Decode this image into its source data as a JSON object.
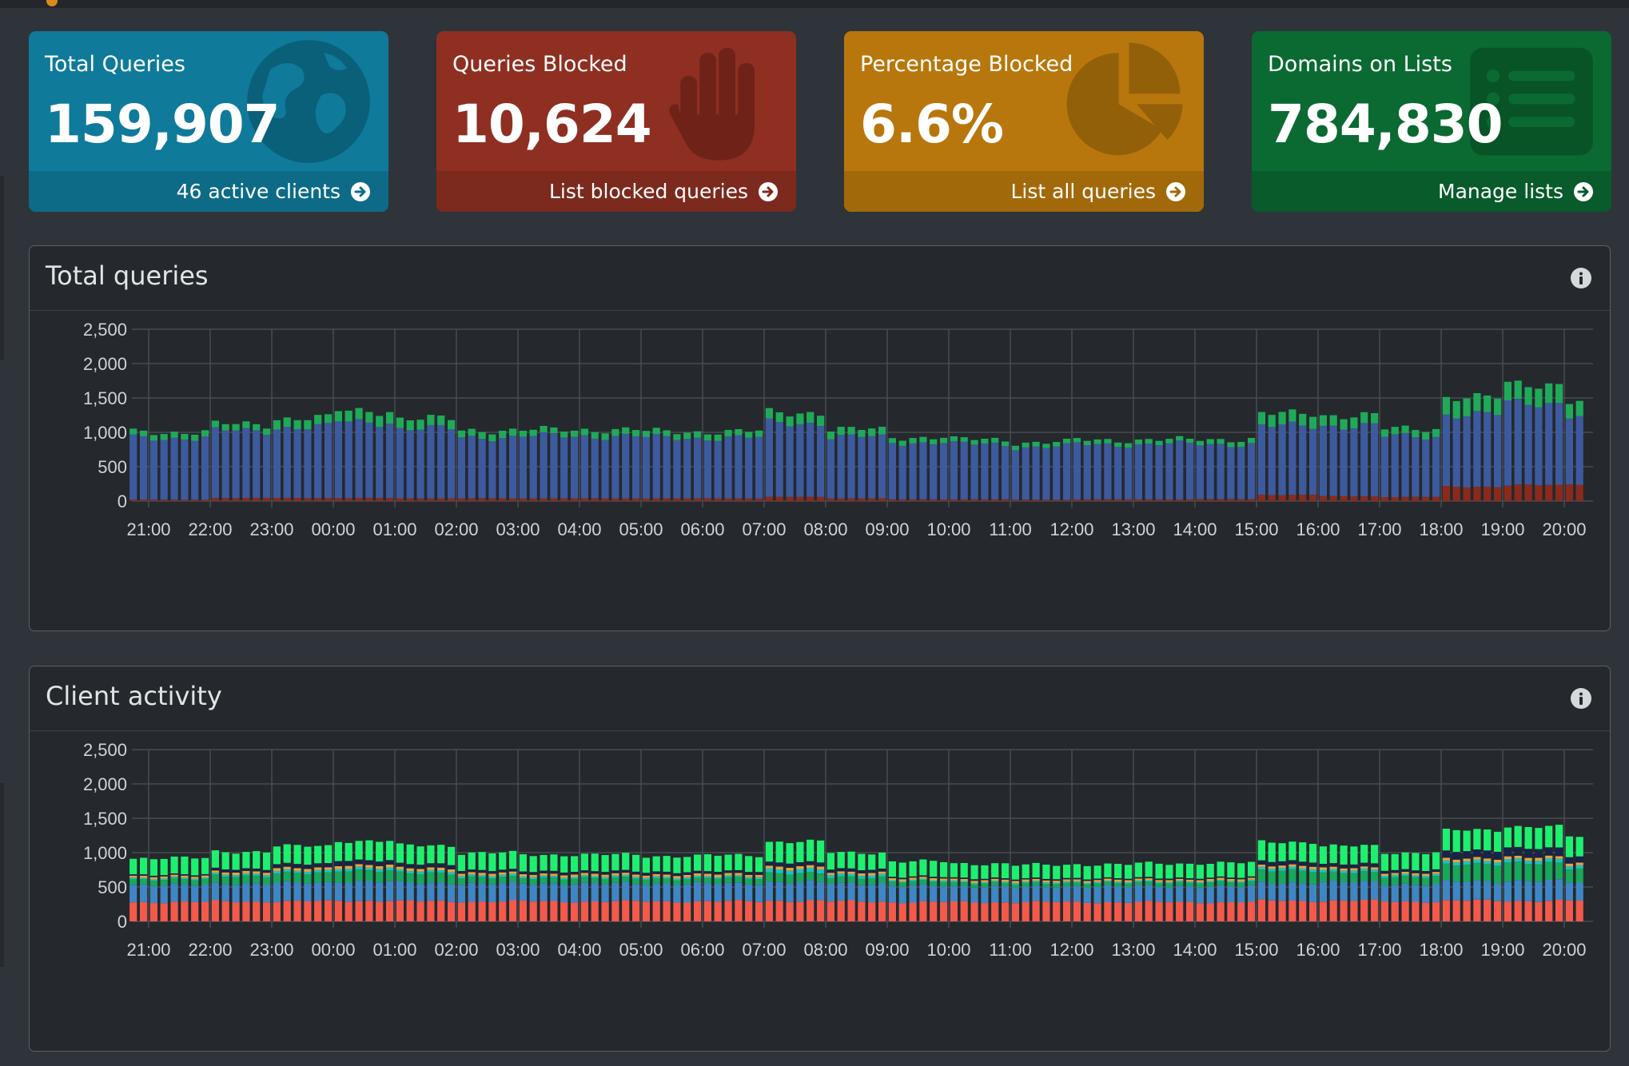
{
  "cards": [
    {
      "label": "Total Queries",
      "value": "159,907",
      "link": "46 active clients",
      "icon": "globe-icon",
      "color": "#0f7a9a",
      "footer_color": "#0d6b87"
    },
    {
      "label": "Queries Blocked",
      "value": "10,624",
      "link": "List blocked queries",
      "icon": "hand-icon",
      "color": "#8e2f22",
      "footer_color": "#7c291e"
    },
    {
      "label": "Percentage Blocked",
      "value": "6.6%",
      "link": "List all queries",
      "icon": "pie-chart-icon",
      "color": "#b8770c",
      "footer_color": "#a2690b"
    },
    {
      "label": "Domains on Lists",
      "value": "784,830",
      "link": "Manage lists",
      "icon": "list-icon",
      "color": "#0b6a32",
      "footer_color": "#095b2b"
    }
  ],
  "panels": {
    "total_queries": {
      "title": "Total queries",
      "icon": "info-icon"
    },
    "client_activity": {
      "title": "Client activity",
      "icon": "info-icon"
    }
  },
  "chart_data": [
    {
      "type": "bar",
      "stacked": true,
      "x": [
        "21:00",
        "22:00",
        "23:00",
        "00:00",
        "01:00",
        "02:00",
        "03:00",
        "04:00",
        "05:00",
        "06:00",
        "07:00",
        "08:00",
        "09:00",
        "10:00",
        "11:00",
        "12:00",
        "13:00",
        "14:00",
        "15:00",
        "16:00",
        "17:00",
        "18:00",
        "19:00",
        "20:00"
      ],
      "ylim": [
        0,
        2500
      ],
      "yticks": [
        "0",
        "500",
        "1,000",
        "1,500",
        "2,000",
        "2,500"
      ],
      "grid": true,
      "bins_per_hour": 6,
      "series": [
        {
          "color": "#8b2a1c",
          "values": [
            20,
            45,
            45,
            45,
            40,
            40,
            40,
            40,
            40,
            40,
            60,
            40,
            25,
            25,
            20,
            25,
            25,
            30,
            90,
            70,
            60,
            210,
            230,
            250
          ]
        },
        {
          "color": "#3d5a9e",
          "values": [
            900,
            975,
            1030,
            1110,
            1010,
            890,
            905,
            905,
            880,
            880,
            1080,
            890,
            830,
            800,
            770,
            800,
            800,
            800,
            1000,
            1030,
            880,
            1050,
            1200,
            1000
          ]
        },
        {
          "color": "#1faa59",
          "values": [
            85,
            95,
            130,
            160,
            145,
            100,
            90,
            95,
            90,
            90,
            150,
            110,
            75,
            70,
            65,
            65,
            65,
            70,
            180,
            150,
            110,
            250,
            270,
            210
          ]
        }
      ]
    },
    {
      "type": "bar",
      "stacked": true,
      "x": [
        "21:00",
        "22:00",
        "23:00",
        "00:00",
        "01:00",
        "02:00",
        "03:00",
        "04:00",
        "05:00",
        "06:00",
        "07:00",
        "08:00",
        "09:00",
        "10:00",
        "11:00",
        "12:00",
        "13:00",
        "14:00",
        "15:00",
        "16:00",
        "17:00",
        "18:00",
        "19:00",
        "20:00"
      ],
      "ylim": [
        0,
        2500
      ],
      "yticks": [
        "0",
        "500",
        "1,000",
        "1,500",
        "2,000",
        "2,500"
      ],
      "grid": true,
      "bins_per_hour": 6,
      "series": [
        {
          "color": "#f4594a",
          "values": [
            280,
            290,
            290,
            300,
            290,
            290,
            290,
            290,
            290,
            290,
            300,
            290,
            280,
            280,
            280,
            280,
            280,
            280,
            300,
            300,
            290,
            300,
            300,
            300
          ]
        },
        {
          "color": "#3f86c4",
          "values": [
            250,
            260,
            270,
            280,
            270,
            260,
            260,
            260,
            260,
            260,
            270,
            260,
            240,
            230,
            220,
            230,
            230,
            230,
            260,
            270,
            250,
            280,
            290,
            270
          ]
        },
        {
          "color": "#17a85a",
          "values": [
            80,
            110,
            140,
            160,
            140,
            90,
            80,
            80,
            70,
            80,
            130,
            90,
            60,
            50,
            50,
            50,
            50,
            60,
            180,
            140,
            110,
            250,
            260,
            200
          ]
        },
        {
          "color": "#19c2c2",
          "values": [
            20,
            30,
            35,
            40,
            35,
            30,
            25,
            25,
            25,
            25,
            60,
            40,
            20,
            20,
            20,
            20,
            20,
            20,
            40,
            35,
            30,
            45,
            50,
            45
          ]
        },
        {
          "color": "#e8a33a",
          "values": [
            30,
            35,
            40,
            40,
            40,
            35,
            35,
            35,
            35,
            35,
            40,
            35,
            30,
            30,
            30,
            30,
            30,
            30,
            35,
            35,
            30,
            40,
            40,
            40
          ]
        },
        {
          "color": "#16234a",
          "values": [
            20,
            40,
            60,
            70,
            60,
            40,
            40,
            40,
            40,
            40,
            60,
            45,
            20,
            20,
            20,
            20,
            20,
            20,
            60,
            55,
            40,
            110,
            130,
            90
          ]
        },
        {
          "color": "#1df06f",
          "values": [
            240,
            250,
            260,
            280,
            270,
            250,
            240,
            240,
            230,
            230,
            300,
            240,
            220,
            210,
            200,
            200,
            210,
            210,
            280,
            260,
            250,
            300,
            310,
            290
          ]
        }
      ]
    }
  ]
}
